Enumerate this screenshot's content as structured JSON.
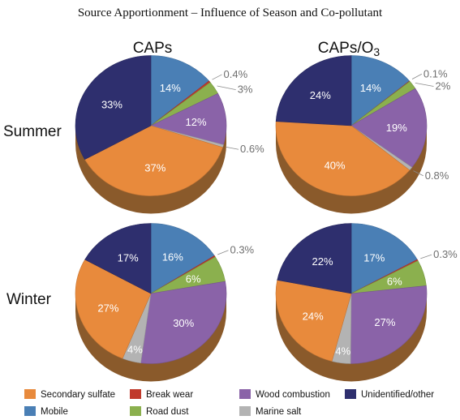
{
  "title": "Source Apportionment – Influence of Season and Co-pollutant",
  "columns": [
    "CAPs",
    "CAPs/O3"
  ],
  "rows": [
    "Summer",
    "Winter"
  ],
  "colors": {
    "Secondary sulfate": "#e88a3c",
    "Mobile": "#4a7fb5",
    "Break wear": "#c0392b",
    "Road dust": "#8bb04e",
    "Wood combustion": "#8a63a8",
    "Marine salt": "#b3b3b3",
    "Unidentified/other": "#2e2f6e"
  },
  "legend": [
    {
      "label": "Secondary sulfate",
      "color": "#e88a3c"
    },
    {
      "label": "Break wear",
      "color": "#c0392b"
    },
    {
      "label": "Wood combustion",
      "color": "#8a63a8"
    },
    {
      "label": "Unidentified/other",
      "color": "#2e2f6e"
    },
    {
      "label": "Mobile",
      "color": "#4a7fb5"
    },
    {
      "label": "Road dust",
      "color": "#8bb04e"
    },
    {
      "label": "Marine salt",
      "color": "#b3b3b3"
    }
  ],
  "chart_data": [
    {
      "type": "pie",
      "title": "CAPs",
      "row": "Summer",
      "slices": [
        {
          "label": "Mobile",
          "value": 14,
          "text": "14%"
        },
        {
          "label": "Break wear",
          "value": 0.4,
          "text": "0.4%"
        },
        {
          "label": "Road dust",
          "value": 3,
          "text": "3%"
        },
        {
          "label": "Wood combustion",
          "value": 12,
          "text": "12%"
        },
        {
          "label": "Marine salt",
          "value": 0.6,
          "text": "0.6%"
        },
        {
          "label": "Secondary sulfate",
          "value": 37,
          "text": "37%"
        },
        {
          "label": "Unidentified/other",
          "value": 33,
          "text": "33%"
        }
      ]
    },
    {
      "type": "pie",
      "title": "CAPs/O3",
      "row": "Summer",
      "slices": [
        {
          "label": "Mobile",
          "value": 14,
          "text": "14%"
        },
        {
          "label": "Break wear",
          "value": 0.1,
          "text": "0.1%"
        },
        {
          "label": "Road dust",
          "value": 2,
          "text": "2%"
        },
        {
          "label": "Wood combustion",
          "value": 19,
          "text": "19%"
        },
        {
          "label": "Marine salt",
          "value": 0.8,
          "text": "0.8%"
        },
        {
          "label": "Secondary sulfate",
          "value": 40,
          "text": "40%"
        },
        {
          "label": "Unidentified/other",
          "value": 24,
          "text": "24%"
        }
      ]
    },
    {
      "type": "pie",
      "title": "CAPs",
      "row": "Winter",
      "slices": [
        {
          "label": "Mobile",
          "value": 16,
          "text": "16%"
        },
        {
          "label": "Break wear",
          "value": 0.3,
          "text": "0.3%"
        },
        {
          "label": "Road dust",
          "value": 6,
          "text": "6%"
        },
        {
          "label": "Wood combustion",
          "value": 30,
          "text": "30%"
        },
        {
          "label": "Marine salt",
          "value": 4,
          "text": "4%"
        },
        {
          "label": "Secondary sulfate",
          "value": 27,
          "text": "27%"
        },
        {
          "label": "Unidentified/other",
          "value": 17,
          "text": "17%"
        }
      ]
    },
    {
      "type": "pie",
      "title": "CAPs/O3",
      "row": "Winter",
      "slices": [
        {
          "label": "Mobile",
          "value": 17,
          "text": "17%"
        },
        {
          "label": "Break wear",
          "value": 0.3,
          "text": "0.3%"
        },
        {
          "label": "Road dust",
          "value": 6,
          "text": "6%"
        },
        {
          "label": "Wood combustion",
          "value": 27,
          "text": "27%"
        },
        {
          "label": "Marine salt",
          "value": 4,
          "text": "4%"
        },
        {
          "label": "Secondary sulfate",
          "value": 24,
          "text": "24%"
        },
        {
          "label": "Unidentified/other",
          "value": 22,
          "text": "22%"
        }
      ]
    }
  ]
}
